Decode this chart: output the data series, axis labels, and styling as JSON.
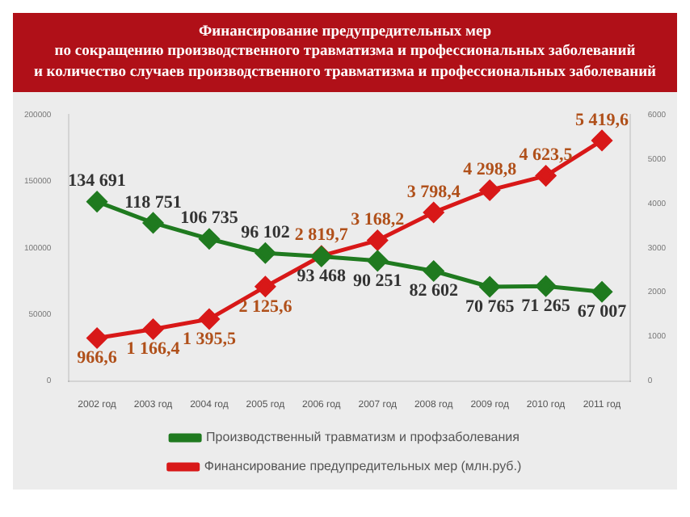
{
  "chart_data": {
    "type": "line",
    "title": "Финансирование предупредительных мер\nпо сокращению производственного травматизма и профессиональных заболеваний\nи количество случаев производственного травматизма и профессиональных заболеваний",
    "categories": [
      "2002 год",
      "2003 год",
      "2004 год",
      "2005 год",
      "2006 год",
      "2007 год",
      "2008 год",
      "2009 год",
      "2010 год",
      "2011 год"
    ],
    "series": [
      {
        "name": "Производственный травматизм и профзаболевания",
        "color": "#1f7a1f",
        "values": [
          134691,
          118751,
          106735,
          96102,
          93468,
          90251,
          82602,
          70765,
          71265,
          67007
        ],
        "value_labels": [
          "134 691",
          "118 751",
          "106 735",
          "96 102",
          "93 468",
          "90 251",
          "82 602",
          "70 765",
          "71 265",
          "67 007"
        ]
      },
      {
        "name": "Финансирование предупредительных мер (млн.руб.)",
        "color": "#d81818",
        "axis": "y2",
        "values": [
          966.6,
          1166.4,
          1395.5,
          2125.6,
          2819.7,
          3168.2,
          3798.4,
          4298.8,
          4623.5,
          5419.6
        ],
        "value_labels": [
          "966,6",
          "1 166,4",
          "1 395,5",
          "2 125,6",
          "2 819,7",
          "3 168,2",
          "3 798,4",
          "4 298,8",
          "4 623,5",
          "5 419,6"
        ]
      }
    ],
    "ylim": [
      0,
      200000
    ],
    "yticks": [
      0,
      50000,
      100000,
      150000,
      200000
    ],
    "y2lim": [
      0,
      6000
    ],
    "y2ticks": [
      0,
      1000,
      2000,
      3000,
      4000,
      5000,
      6000
    ],
    "marker": "diamond",
    "legend": "bottom",
    "grid": false
  }
}
